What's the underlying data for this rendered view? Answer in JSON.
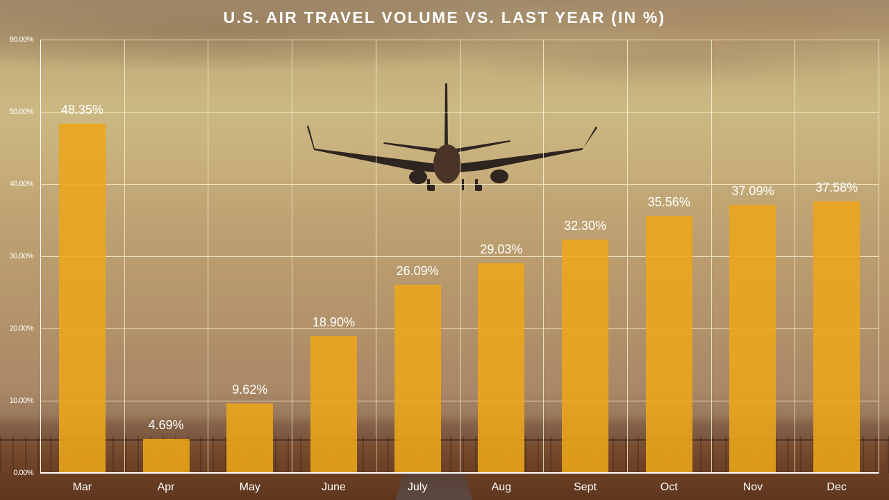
{
  "chart_data": {
    "type": "bar",
    "title": "U.S. AIR TRAVEL VOLUME VS. LAST YEAR (IN %)",
    "xlabel": "",
    "ylabel": "",
    "categories": [
      "Mar",
      "Apr",
      "May",
      "June",
      "July",
      "Aug",
      "Sept",
      "Oct",
      "Nov",
      "Dec"
    ],
    "values": [
      48.35,
      4.69,
      9.62,
      18.9,
      26.09,
      29.03,
      32.3,
      35.56,
      37.09,
      37.58
    ],
    "data_labels": [
      "48.35%",
      "4.69%",
      "9.62%",
      "18.90%",
      "26.09%",
      "29.03%",
      "32.30%",
      "35.56%",
      "37.09%",
      "37.58%"
    ],
    "ylim": [
      0,
      60
    ],
    "yticks": [
      "0.00%",
      "10.00%",
      "20.00%",
      "30.00%",
      "40.00%",
      "50.00%",
      "60.00%"
    ],
    "ytick_values": [
      0,
      10,
      20,
      30,
      40,
      50,
      60
    ],
    "grid": true,
    "legend": null,
    "bar_color": "#eca61a"
  },
  "title": "U.S. AIR TRAVEL VOLUME VS. LAST YEAR (IN %)",
  "background": "airplane-landing-sunset-photo"
}
